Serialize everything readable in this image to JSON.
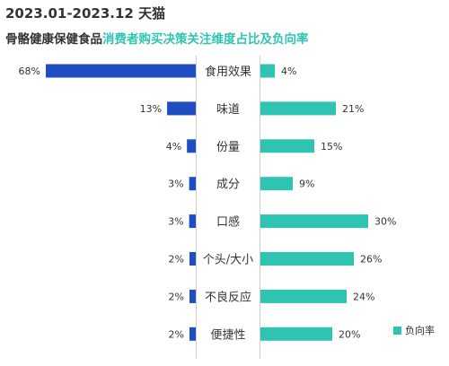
{
  "header": {
    "title": "2023.01-2023.12 天猫",
    "subtitle_prefix": "骨骼健康保健食品",
    "subtitle_suffix": "消费者购买决策关注维度占比及负向率"
  },
  "colors": {
    "left_bar": "#1f4ec3",
    "right_bar": "#2fc4b2",
    "divider": "#cfcfcf",
    "label": "#333333"
  },
  "chart_data": {
    "type": "bar",
    "categories": [
      "食用效果",
      "味道",
      "份量",
      "成分",
      "口感",
      "个头/大小",
      "不良反应",
      "便捷性"
    ],
    "series": [
      {
        "values": [
          68,
          13,
          4,
          3,
          3,
          2,
          2,
          2
        ]
      },
      {
        "name": "负向率",
        "values": [
          4,
          21,
          15,
          9,
          30,
          26,
          24,
          20
        ]
      }
    ],
    "unit": "%",
    "legend": {
      "position": "bottom-right",
      "label": "负向率"
    }
  }
}
